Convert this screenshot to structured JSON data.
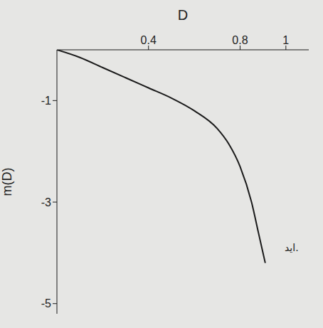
{
  "chart_data": {
    "type": "line",
    "x_label": "D",
    "y_label": "m(D)",
    "annotation": "اید.",
    "x": [
      0,
      0.1,
      0.2,
      0.3,
      0.4,
      0.5,
      0.6,
      0.7,
      0.75,
      0.8,
      0.85,
      0.88,
      0.91
    ],
    "values": [
      0,
      -0.15,
      -0.35,
      -0.55,
      -0.75,
      -0.95,
      -1.2,
      -1.55,
      -1.85,
      -2.3,
      -3.0,
      -3.6,
      -4.2
    ],
    "color": "#1a1a1a",
    "xlim": [
      0,
      1.1
    ],
    "ylim": [
      -5.2,
      0
    ],
    "xticks": [
      0.4,
      0.8,
      1
    ],
    "yticks": [
      -1,
      -3,
      -5
    ],
    "grid": false
  }
}
